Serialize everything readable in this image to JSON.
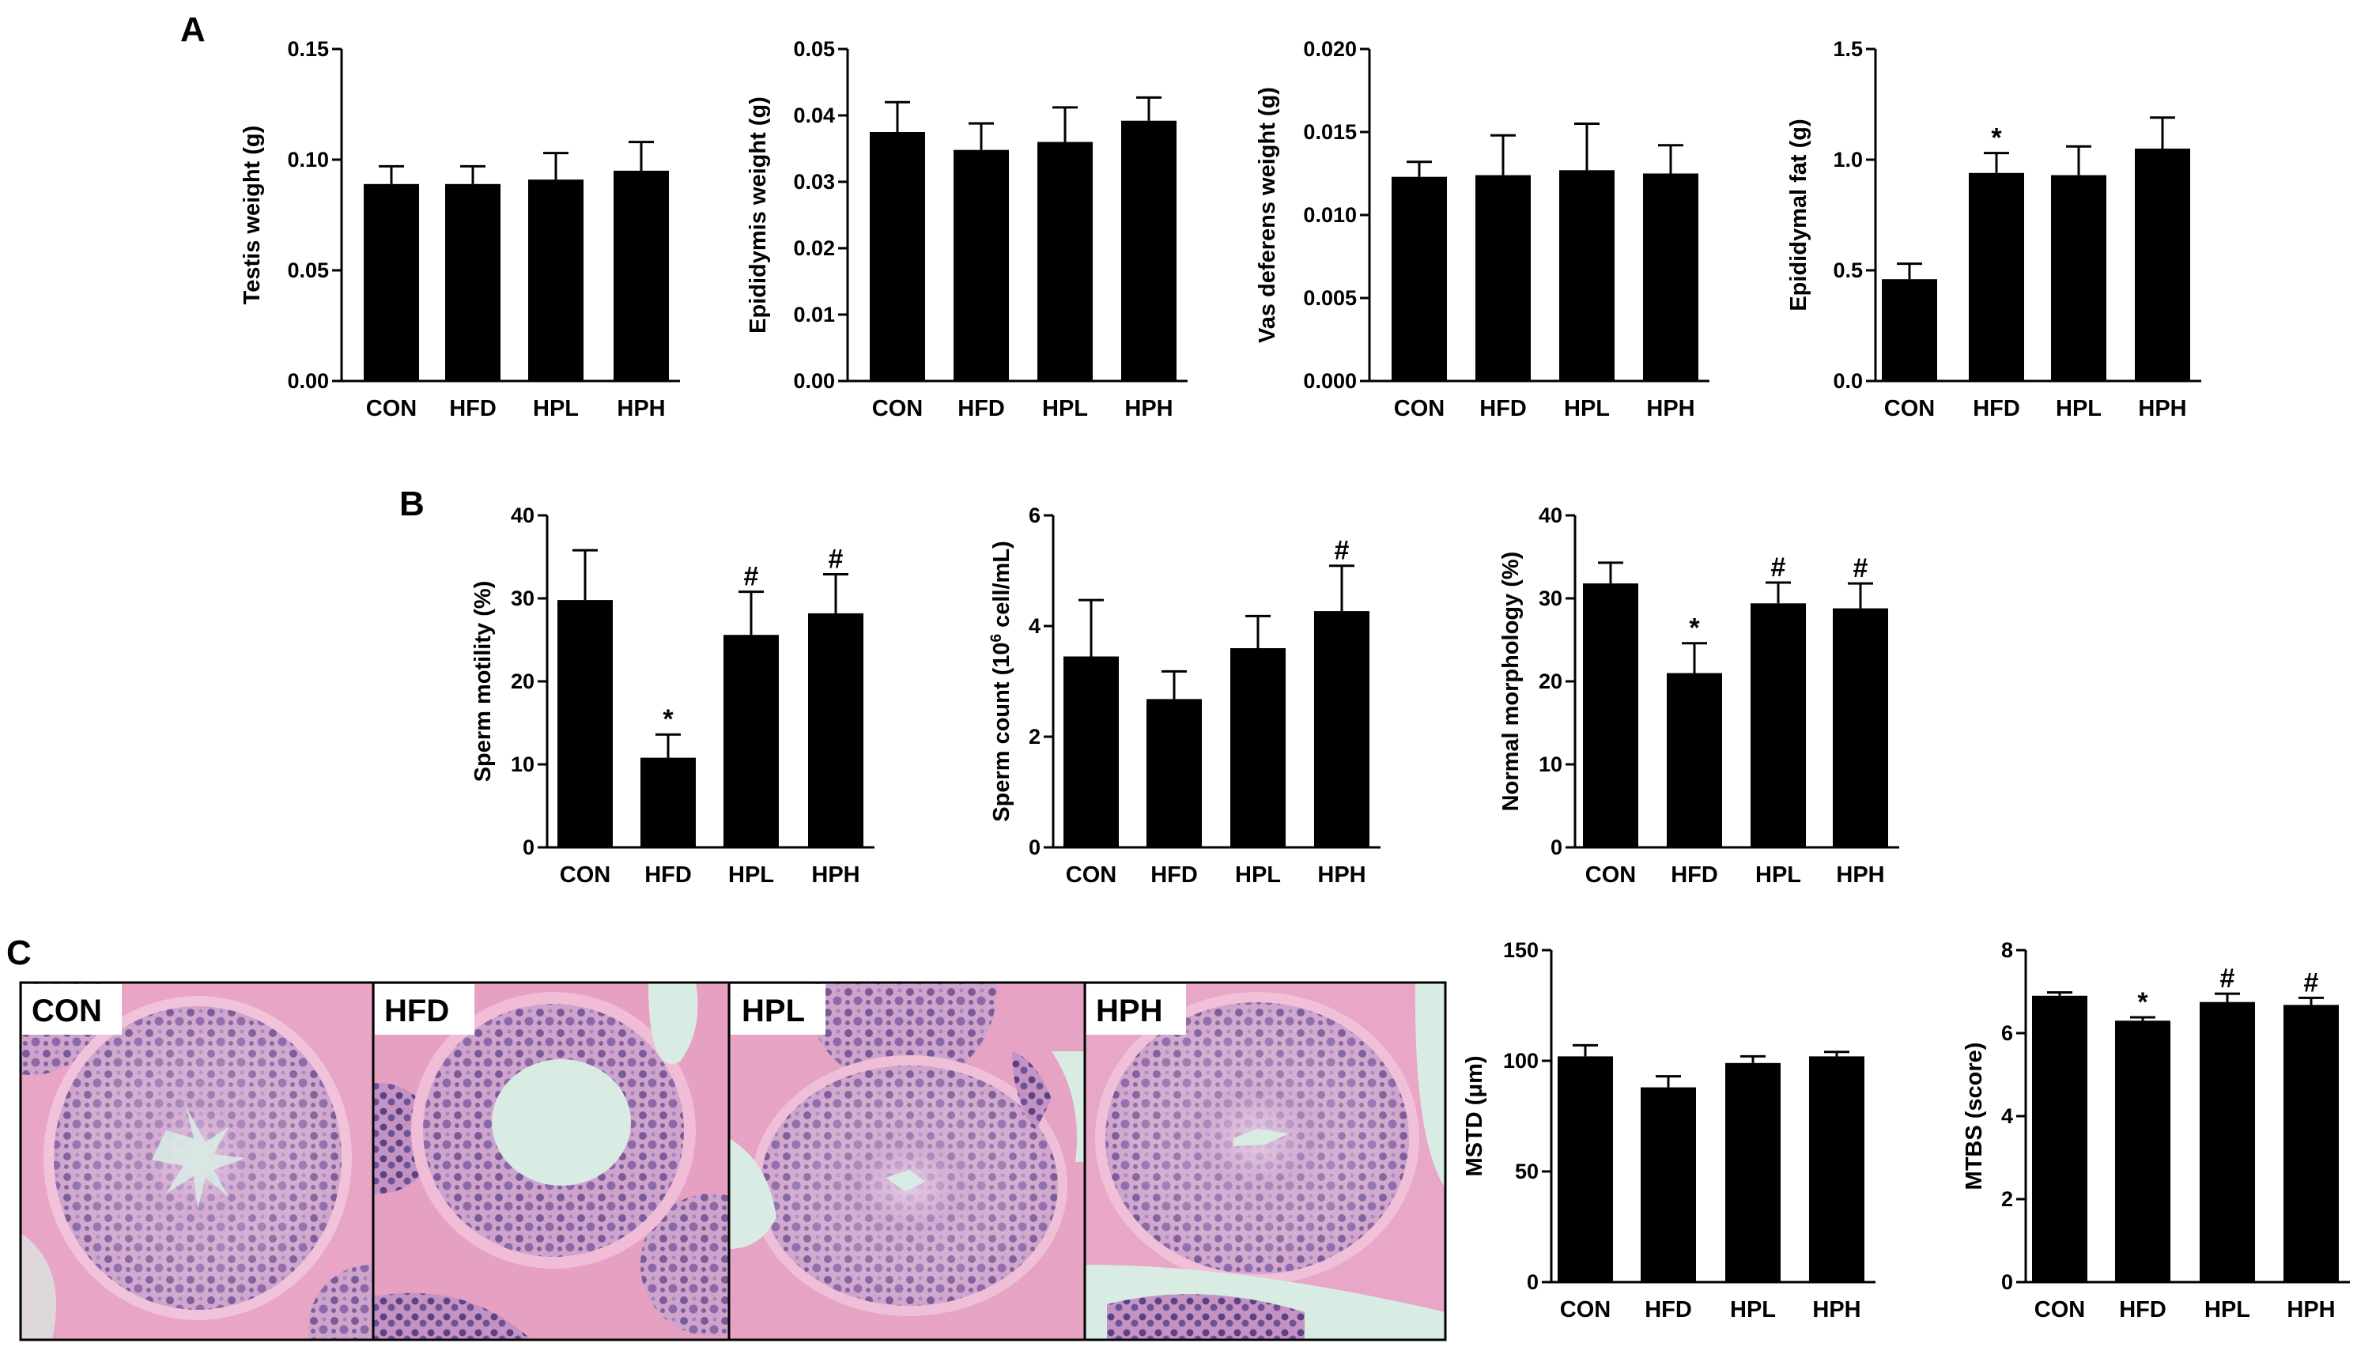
{
  "panel_letters": [
    "A",
    "B",
    "C"
  ],
  "chart_data": [
    {
      "type": "bar",
      "panel": "A",
      "categories": [
        "CON",
        "HFD",
        "HPL",
        "HPH"
      ],
      "values": [
        0.089,
        0.089,
        0.091,
        0.095
      ],
      "errors": [
        0.008,
        0.008,
        0.012,
        0.013
      ],
      "annotations": [
        "",
        "",
        "",
        ""
      ],
      "ylabel": "Testis weight (g)",
      "ylim": [
        0,
        0.15
      ],
      "yticks": [
        "0.00",
        "0.05",
        "0.10",
        "0.15"
      ],
      "color": "#000000"
    },
    {
      "type": "bar",
      "panel": "A",
      "categories": [
        "CON",
        "HFD",
        "HPL",
        "HPH"
      ],
      "values": [
        0.0375,
        0.0348,
        0.036,
        0.0392
      ],
      "errors": [
        0.0045,
        0.004,
        0.0052,
        0.0035
      ],
      "annotations": [
        "",
        "",
        "",
        ""
      ],
      "ylabel": "Epididymis weight (g)",
      "ylim": [
        0,
        0.05
      ],
      "yticks": [
        "0.00",
        "0.01",
        "0.02",
        "0.03",
        "0.04",
        "0.05"
      ],
      "color": "#000000"
    },
    {
      "type": "bar",
      "panel": "A",
      "categories": [
        "CON",
        "HFD",
        "HPL",
        "HPH"
      ],
      "values": [
        0.0123,
        0.0124,
        0.0127,
        0.0125
      ],
      "errors": [
        0.0009,
        0.0024,
        0.0028,
        0.0017
      ],
      "annotations": [
        "",
        "",
        "",
        ""
      ],
      "ylabel": "Vas deferens weight (g)",
      "ylim": [
        0,
        0.02
      ],
      "yticks": [
        "0.000",
        "0.005",
        "0.010",
        "0.015",
        "0.020"
      ],
      "color": "#000000"
    },
    {
      "type": "bar",
      "panel": "A",
      "categories": [
        "CON",
        "HFD",
        "HPL",
        "HPH"
      ],
      "values": [
        0.46,
        0.94,
        0.93,
        1.05
      ],
      "errors": [
        0.07,
        0.09,
        0.13,
        0.14
      ],
      "annotations": [
        "",
        "*",
        "",
        ""
      ],
      "ylabel": "Epididymal fat (g)",
      "ylim": [
        0,
        1.5
      ],
      "yticks": [
        "0.0",
        "0.5",
        "1.0",
        "1.5"
      ],
      "color": "#000000"
    },
    {
      "type": "bar",
      "panel": "B",
      "categories": [
        "CON",
        "HFD",
        "HPL",
        "HPH"
      ],
      "values": [
        29.8,
        10.8,
        25.6,
        28.2
      ],
      "errors": [
        6.0,
        2.8,
        5.2,
        4.7
      ],
      "annotations": [
        "",
        "*",
        "#",
        "#"
      ],
      "ylabel": "Sperm motility (%)",
      "ylim": [
        0,
        40
      ],
      "yticks": [
        "0",
        "10",
        "20",
        "30",
        "40"
      ],
      "color": "#000000"
    },
    {
      "type": "bar",
      "panel": "B",
      "categories": [
        "CON",
        "HFD",
        "HPL",
        "HPH"
      ],
      "values": [
        3.45,
        2.68,
        3.6,
        4.27
      ],
      "errors": [
        1.02,
        0.5,
        0.58,
        0.82
      ],
      "annotations": [
        "",
        "",
        "",
        "#"
      ],
      "ylabel_prefix": "Sperm count (10",
      "ylabel_sup": "6",
      "ylabel_suffix": " cell/mL)",
      "ylim": [
        0,
        6
      ],
      "yticks": [
        "0",
        "2",
        "4",
        "6"
      ],
      "color": "#000000"
    },
    {
      "type": "bar",
      "panel": "B",
      "categories": [
        "CON",
        "HFD",
        "HPL",
        "HPH"
      ],
      "values": [
        31.8,
        21.0,
        29.4,
        28.8
      ],
      "errors": [
        2.5,
        3.6,
        2.5,
        3.0
      ],
      "annotations": [
        "",
        "*",
        "#",
        "#"
      ],
      "ylabel": "Normal morphology (%)",
      "ylim": [
        0,
        40
      ],
      "yticks": [
        "0",
        "10",
        "20",
        "30",
        "40"
      ],
      "color": "#000000"
    },
    {
      "type": "bar",
      "panel": "C",
      "categories": [
        "CON",
        "HFD",
        "HPL",
        "HPH"
      ],
      "values": [
        102,
        88,
        99,
        102
      ],
      "errors": [
        5,
        5,
        3,
        2
      ],
      "annotations": [
        "",
        "",
        "",
        ""
      ],
      "ylabel": "MSTD (μm)",
      "ylim": [
        0,
        150
      ],
      "yticks": [
        "0",
        "50",
        "100",
        "150"
      ],
      "color": "#000000"
    },
    {
      "type": "bar",
      "panel": "C",
      "categories": [
        "CON",
        "HFD",
        "HPL",
        "HPH"
      ],
      "values": [
        6.9,
        6.3,
        6.75,
        6.68
      ],
      "errors": [
        0.08,
        0.08,
        0.2,
        0.17
      ],
      "annotations": [
        "",
        "*",
        "#",
        "#"
      ],
      "ylabel": "MTBS (score)",
      "ylim": [
        0,
        8
      ],
      "yticks": [
        "0",
        "2",
        "4",
        "6",
        "8"
      ],
      "color": "#000000"
    }
  ],
  "micrographs": {
    "labels": [
      "CON",
      "HFD",
      "HPL",
      "HPH"
    ],
    "colors": {
      "stroma": "#e9a5c6",
      "lumen": "#d9ece4",
      "nuclei": "#6a4f91",
      "cytoplasm": "#cfa4cc"
    }
  }
}
